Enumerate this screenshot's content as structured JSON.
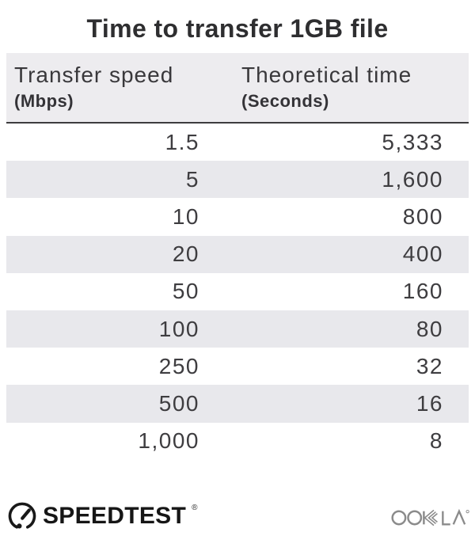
{
  "title": "Time to transfer 1GB file",
  "table": {
    "columns": [
      {
        "label": "Transfer speed",
        "unit": "(Mbps)"
      },
      {
        "label": "Theoretical time",
        "unit": "(Seconds)"
      }
    ],
    "rows": [
      {
        "speed": "1.5",
        "time": "5,333"
      },
      {
        "speed": "5",
        "time": "1,600"
      },
      {
        "speed": "10",
        "time": "800"
      },
      {
        "speed": "20",
        "time": "400"
      },
      {
        "speed": "50",
        "time": "160"
      },
      {
        "speed": "100",
        "time": "80"
      },
      {
        "speed": "250",
        "time": "32"
      },
      {
        "speed": "500",
        "time": "16"
      },
      {
        "speed": "1,000",
        "time": "8"
      }
    ]
  },
  "footer": {
    "speedtest_label": "SPEEDTEST",
    "speedtest_reg": "®",
    "ookla_label": "OOKLA",
    "icons": {
      "speedtest": "gauge-icon",
      "ookla": "ookla-wordmark"
    }
  },
  "colors": {
    "title_text": "#2e2e30",
    "header_bg": "#edecef",
    "header_border": "#3e3d3f",
    "row_alt_bg": "#e8e8ec",
    "body_text": "#3e3d40",
    "speedtest_text": "#161616",
    "ookla_gray": "#8b8b8b"
  },
  "chart_data": {
    "type": "table",
    "title": "Time to transfer 1GB file",
    "columns": [
      "Transfer speed (Mbps)",
      "Theoretical time (Seconds)"
    ],
    "rows": [
      [
        1.5,
        5333
      ],
      [
        5,
        1600
      ],
      [
        10,
        800
      ],
      [
        20,
        400
      ],
      [
        50,
        160
      ],
      [
        100,
        80
      ],
      [
        250,
        32
      ],
      [
        500,
        16
      ],
      [
        1000,
        8
      ]
    ],
    "layout": {
      "alternating_row_shading": true,
      "first_shaded_row_index": 1,
      "value_alignment": "right"
    }
  }
}
